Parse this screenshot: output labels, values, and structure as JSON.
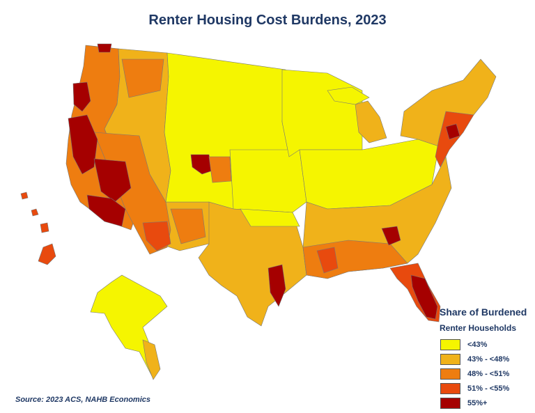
{
  "title": "Renter Housing Cost Burdens, 2023",
  "legend": {
    "title_line1": "Share of Burdened",
    "title_line2": "Renter Households",
    "items": [
      {
        "label": "<43%",
        "color": "#f5f500"
      },
      {
        "label": "43% - <48%",
        "color": "#f0b21a"
      },
      {
        "label": "48% - <51%",
        "color": "#ee7d10"
      },
      {
        "label": "51% - <55%",
        "color": "#e84a0e"
      },
      {
        "label": "55%+",
        "color": "#a50000"
      }
    ]
  },
  "source": "Source: 2023 ACS, NAHB Economics"
}
